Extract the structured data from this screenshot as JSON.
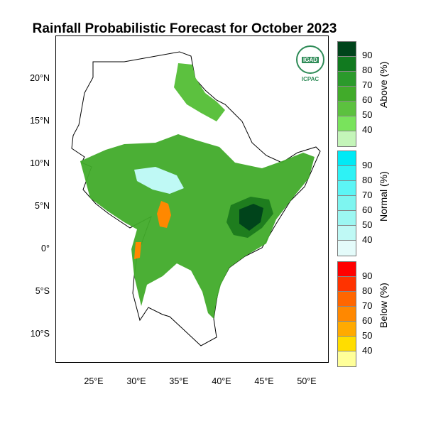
{
  "title": "Rainfall Probabilistic Forecast for October 2023",
  "logo": {
    "top_text": "IGAD",
    "bottom_text": "ICPAC"
  },
  "lat_ticks": [
    "20°N",
    "15°N",
    "10°N",
    "5°N",
    "0°",
    "5°S",
    "10°S"
  ],
  "lon_ticks": [
    "25°E",
    "30°E",
    "35°E",
    "40°E",
    "45°E",
    "50°E"
  ],
  "legend": {
    "above": {
      "title": "Above (%)",
      "labels": [
        "90",
        "80",
        "70",
        "60",
        "50",
        "40"
      ],
      "colors": [
        "#00441b",
        "#117a1f",
        "#2b9a2b",
        "#41ab2a",
        "#5cc13f",
        "#79e35c",
        "#c4f5b9"
      ]
    },
    "normal": {
      "title": "Normal (%)",
      "labels": [
        "90",
        "80",
        "70",
        "60",
        "50",
        "40"
      ],
      "colors": [
        "#00eaf5",
        "#2ef2f5",
        "#5cf5f5",
        "#7ef5f0",
        "#9cf7f2",
        "#bff9f5",
        "#e4fbfa"
      ]
    },
    "below": {
      "title": "Below (%)",
      "labels": [
        "90",
        "80",
        "70",
        "60",
        "50",
        "40"
      ],
      "colors": [
        "#ff0000",
        "#ff3300",
        "#ff6600",
        "#ff8800",
        "#ffaa00",
        "#ffdd00",
        "#ffff99"
      ]
    }
  },
  "map_colors": {
    "land_high": "#1e7d1e",
    "land_mid": "#41ab2a",
    "land_low": "#5cc13f",
    "normal": "#bff9f5",
    "below": "#ff8800"
  }
}
